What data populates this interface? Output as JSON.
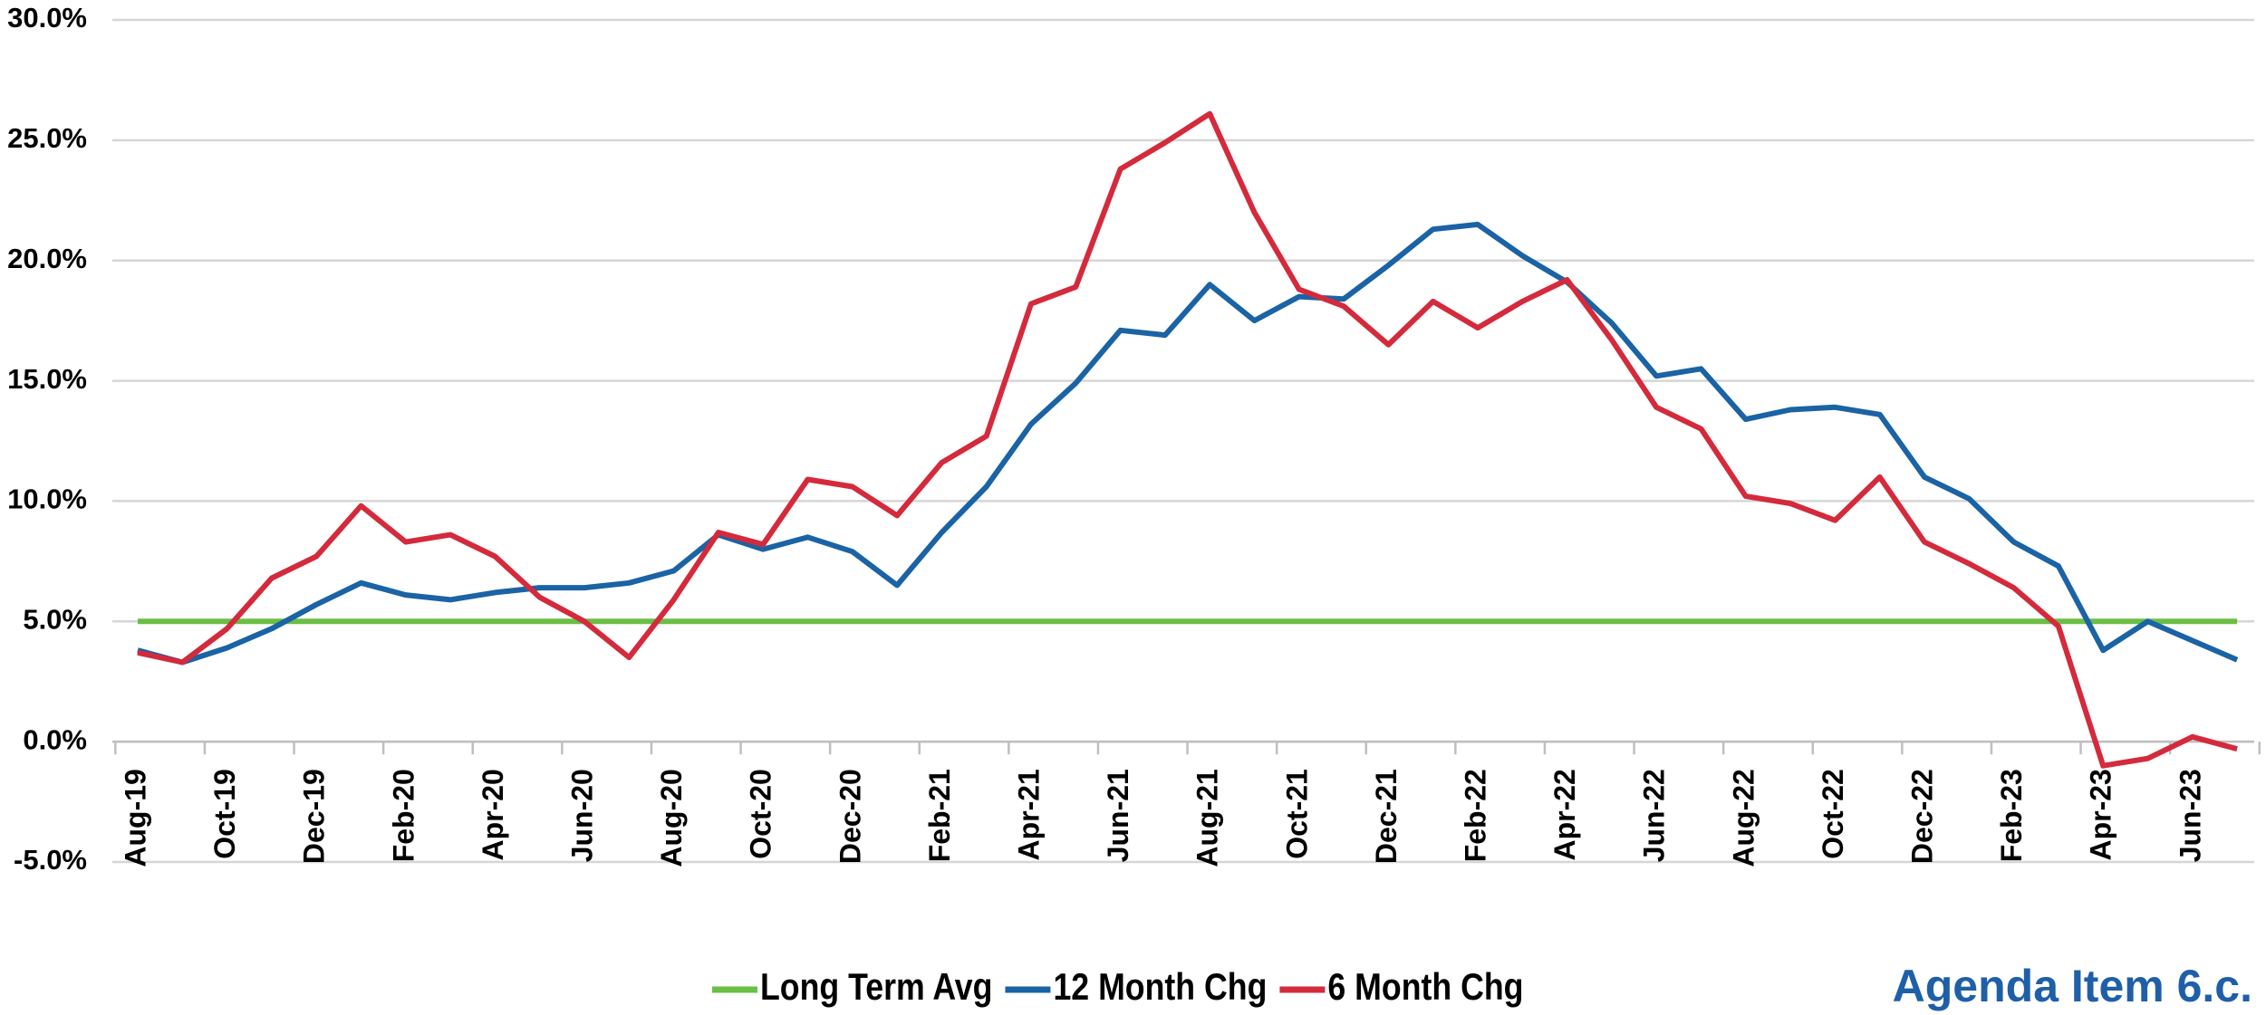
{
  "chart_data": {
    "type": "line",
    "categories": [
      "Aug-19",
      null,
      "Oct-19",
      null,
      "Dec-19",
      null,
      "Feb-20",
      null,
      "Apr-20",
      null,
      "Jun-20",
      null,
      "Aug-20",
      null,
      "Oct-20",
      null,
      "Dec-20",
      null,
      "Feb-21",
      null,
      "Apr-21",
      null,
      "Jun-21",
      null,
      "Aug-21",
      null,
      "Oct-21",
      null,
      "Dec-21",
      null,
      "Feb-22",
      null,
      "Apr-22",
      null,
      "Jun-22",
      null,
      "Aug-22",
      null,
      "Oct-22",
      null,
      "Dec-22",
      null,
      "Feb-23",
      null,
      "Apr-23",
      null,
      "Jun-23",
      null
    ],
    "series": [
      {
        "name": "Long Term Avg",
        "color": "#6abf45",
        "values": [
          5,
          5,
          5,
          5,
          5,
          5,
          5,
          5,
          5,
          5,
          5,
          5,
          5,
          5,
          5,
          5,
          5,
          5,
          5,
          5,
          5,
          5,
          5,
          5,
          5,
          5,
          5,
          5,
          5,
          5,
          5,
          5,
          5,
          5,
          5,
          5,
          5,
          5,
          5,
          5,
          5,
          5,
          5,
          5,
          5,
          5,
          5,
          5
        ]
      },
      {
        "name": "12 Month Chg",
        "color": "#1a63a5",
        "values": [
          3.8,
          3.3,
          3.9,
          4.7,
          5.7,
          6.6,
          6.1,
          5.9,
          6.2,
          6.4,
          6.4,
          6.6,
          7.1,
          8.6,
          8.0,
          8.5,
          7.9,
          6.5,
          8.7,
          10.6,
          13.2,
          14.9,
          17.1,
          16.9,
          19.0,
          17.5,
          18.5,
          18.4,
          19.8,
          21.3,
          21.5,
          20.2,
          19.1,
          17.4,
          15.2,
          15.5,
          13.4,
          13.8,
          13.9,
          13.6,
          11.0,
          10.1,
          8.3,
          7.3,
          3.8,
          5.0,
          4.2,
          3.4
        ]
      },
      {
        "name": "6 Month Chg",
        "color": "#d42a3c",
        "values": [
          3.7,
          3.3,
          4.7,
          6.8,
          7.7,
          9.8,
          8.3,
          8.6,
          7.7,
          6.0,
          5.0,
          3.5,
          5.9,
          8.7,
          8.2,
          10.9,
          10.6,
          9.4,
          11.6,
          12.7,
          18.2,
          18.9,
          23.8,
          24.9,
          26.1,
          22.0,
          18.8,
          18.1,
          16.5,
          18.3,
          17.2,
          18.3,
          19.2,
          16.7,
          13.9,
          13.0,
          10.2,
          9.9,
          9.2,
          11.0,
          8.3,
          7.4,
          6.4,
          4.8,
          -1.0,
          -0.7,
          0.2,
          -0.3
        ]
      }
    ],
    "ylim": [
      -5,
      30
    ],
    "yticks": [
      {
        "value": -5,
        "label": "-5.0%"
      },
      {
        "value": 0,
        "label": "0.0%"
      },
      {
        "value": 5,
        "label": "5.0%"
      },
      {
        "value": 10,
        "label": "10.0%"
      },
      {
        "value": 15,
        "label": "15.0%"
      },
      {
        "value": 20,
        "label": "20.0%"
      },
      {
        "value": 25,
        "label": "25.0%"
      },
      {
        "value": 30,
        "label": "30.0%"
      }
    ],
    "grid": true,
    "legend": "bottom",
    "annotation": "Agenda Item 6.c."
  }
}
